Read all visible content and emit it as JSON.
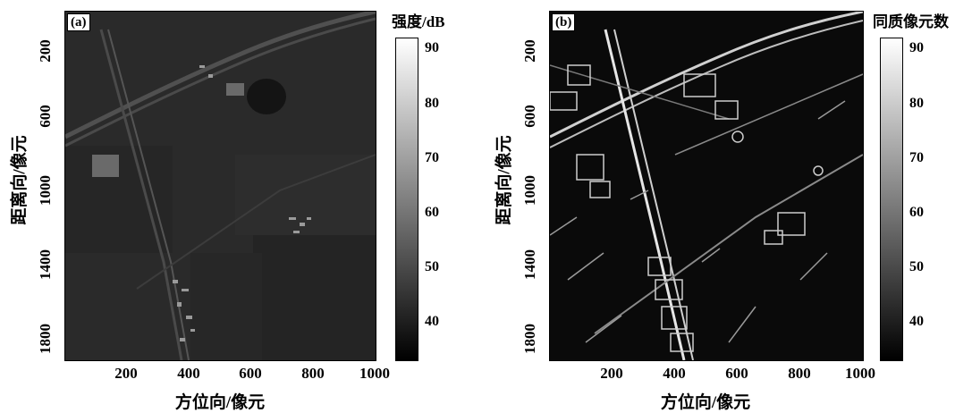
{
  "chart_data": [
    {
      "type": "heatmap",
      "panel_label": "(a)",
      "xlabel": "方位向/像元",
      "ylabel": "距离向/像元",
      "xticks": [
        "200",
        "400",
        "600",
        "800",
        "1000"
      ],
      "yticks": [
        "200",
        "600",
        "1000",
        "1400",
        "1800"
      ],
      "xlim": [
        0,
        1000
      ],
      "ylim": [
        0,
        1900
      ],
      "colorbar": {
        "title": "强度/dB",
        "ticks": [
          "90",
          "80",
          "70",
          "60",
          "50",
          "40"
        ],
        "range": [
          33,
          92
        ],
        "colormap": "gray"
      },
      "description_scale": "linear"
    },
    {
      "type": "heatmap",
      "panel_label": "(b)",
      "xlabel": "方位向/像元",
      "ylabel": "距离向/像元",
      "xticks": [
        "200",
        "400",
        "600",
        "800",
        "1000"
      ],
      "yticks": [
        "200",
        "600",
        "1000",
        "1400",
        "1800"
      ],
      "xlim": [
        0,
        1000
      ],
      "ylim": [
        0,
        1900
      ],
      "colorbar": {
        "title": "同质像元数",
        "ticks": [
          "90",
          "80",
          "70",
          "60",
          "50",
          "40"
        ],
        "range": [
          33,
          92
        ],
        "colormap": "gray"
      },
      "description_scale": "linear"
    }
  ]
}
